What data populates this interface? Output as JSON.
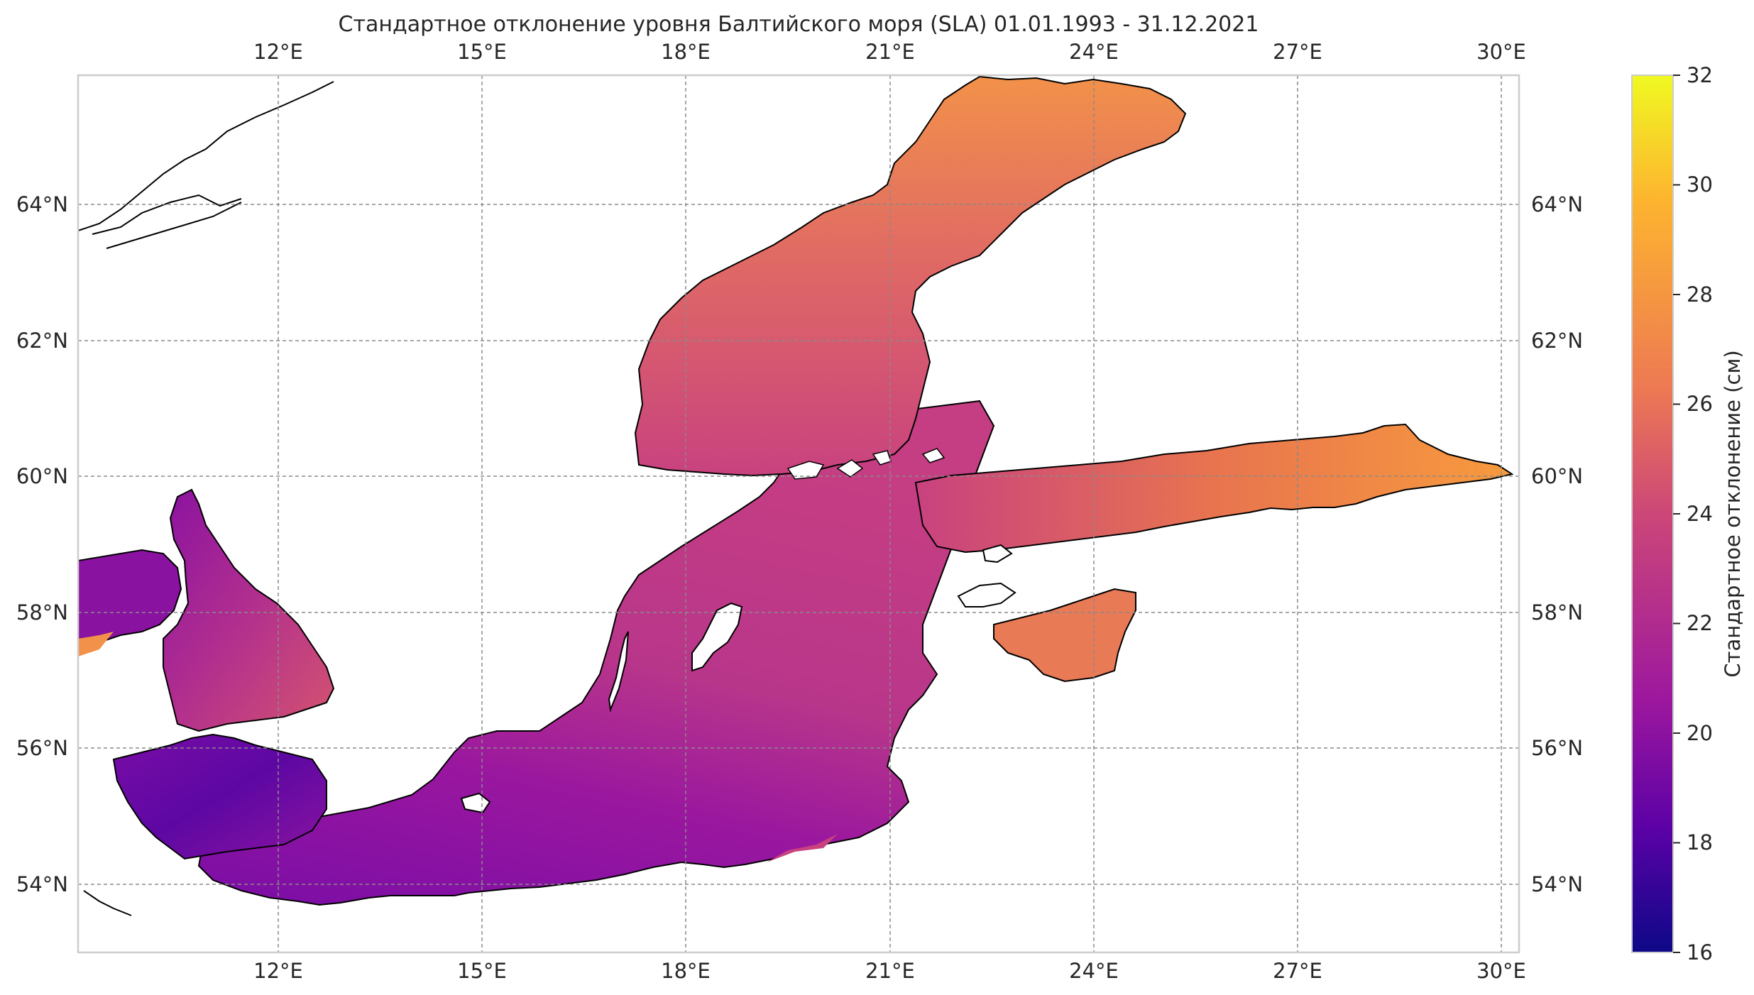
{
  "map": {
    "title": "Стандартное отклонение уровня Балтийского моря (SLA) 01.01.1993 - 31.12.2021",
    "lon_range": [
      9,
      30.2
    ],
    "lat_range": [
      53,
      65.9
    ],
    "lon_ticks": [
      "12°E",
      "15°E",
      "18°E",
      "21°E",
      "24°E",
      "27°E",
      "30°E"
    ],
    "lon_tick_values": [
      12,
      15,
      18,
      21,
      24,
      27,
      30
    ],
    "lat_ticks": [
      "54°N",
      "56°N",
      "58°N",
      "60°N",
      "62°N",
      "64°N"
    ],
    "lat_tick_values": [
      54,
      56,
      58,
      60,
      62,
      64
    ],
    "grid": true,
    "colors": {
      "ocean_mid": "#b0358a",
      "coast": "#000000",
      "grid": "#8a8a8a"
    }
  },
  "colorbar": {
    "label": "Стандартное отклонение (см)",
    "min": 16,
    "max": 32,
    "ticks": [
      "16",
      "18",
      "20",
      "22",
      "24",
      "26",
      "28",
      "30",
      "32"
    ],
    "tick_values": [
      16,
      18,
      20,
      22,
      24,
      26,
      28,
      30,
      32
    ],
    "colormap": "plasma",
    "colormap_stops": [
      "#0d0887",
      "#5c01a6",
      "#9c179e",
      "#cc4778",
      "#ed7953",
      "#fdb42f",
      "#f0f921"
    ]
  }
}
